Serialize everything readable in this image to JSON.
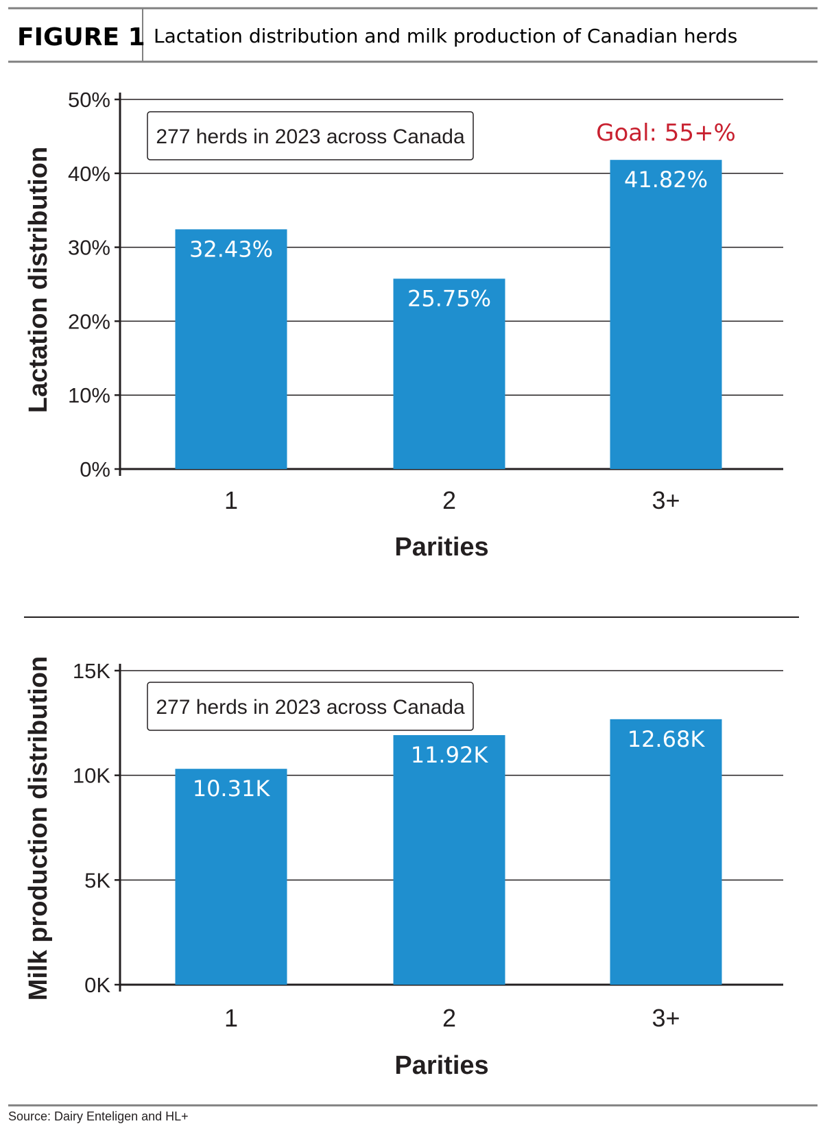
{
  "figure": {
    "label": "FIGURE 1",
    "title": "Lactation distribution and milk production of Canadian herds",
    "source": "Source: Dairy Enteligen and HL+"
  },
  "chart_data": [
    {
      "type": "bar",
      "categories": [
        "1",
        "2",
        "3+"
      ],
      "values": [
        32.43,
        25.75,
        41.82
      ],
      "value_labels": [
        "32.43%",
        "25.75%",
        "41.82%"
      ],
      "xlabel": "Parities",
      "ylabel": "Lactation distribution",
      "ylim": [
        0,
        50
      ],
      "yticks": [
        0,
        10,
        20,
        30,
        40,
        50
      ],
      "ytick_labels": [
        "0%",
        "10%",
        "20%",
        "30%",
        "40%",
        "50%"
      ],
      "grid": true,
      "bar_color": "#1f8fcf",
      "annotations": [
        {
          "text": "277 herds in 2023 across Canada",
          "placement": "top-left"
        },
        {
          "text": "Goal: 55+%",
          "category": "3+",
          "color": "#c8202f"
        }
      ]
    },
    {
      "type": "bar",
      "categories": [
        "1",
        "2",
        "3+"
      ],
      "values": [
        10.31,
        11.92,
        12.68
      ],
      "value_labels": [
        "10.31K",
        "11.92K",
        "12.68K"
      ],
      "xlabel": "Parities",
      "ylabel": "Milk production distribution",
      "ylim": [
        0,
        15
      ],
      "yticks": [
        0,
        5,
        10,
        15
      ],
      "ytick_labels": [
        "0K",
        "5K",
        "10K",
        "15K"
      ],
      "grid": true,
      "bar_color": "#1f8fcf",
      "annotations": [
        {
          "text": "277 herds in 2023 across Canada",
          "placement": "top-left"
        }
      ]
    }
  ]
}
